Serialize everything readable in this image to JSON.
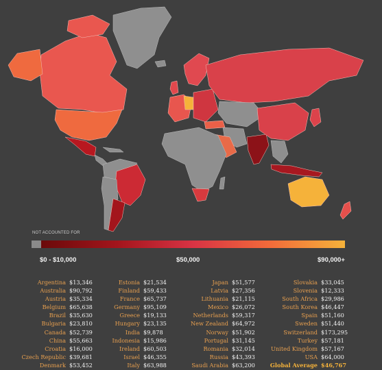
{
  "legend": {
    "not_accounted_label": "NOT ACCOUNTED FOR",
    "ticks": [
      "$0 - $10,000",
      "$50,000",
      "$90,000+"
    ],
    "colors": {
      "no_data": "#8a8a8a",
      "low": "#6b0a0a",
      "mid": "#d83344",
      "high": "#f5b23a"
    }
  },
  "table": {
    "col1": [
      {
        "country": "Argentina",
        "value": "$13,346"
      },
      {
        "country": "Australia",
        "value": "$90,792"
      },
      {
        "country": "Austria",
        "value": "$35,334"
      },
      {
        "country": "Belgium",
        "value": "$65,638"
      },
      {
        "country": "Brazil",
        "value": "$35,630"
      },
      {
        "country": "Bulgaria",
        "value": "$23,810"
      },
      {
        "country": "Canada",
        "value": "$52,739"
      },
      {
        "country": "China",
        "value": "$55,663"
      },
      {
        "country": "Croatia",
        "value": "$16,000"
      },
      {
        "country": "Czech Republic",
        "value": "$39,681"
      },
      {
        "country": "Denmark",
        "value": "$53,452"
      }
    ],
    "col2": [
      {
        "country": "Estonia",
        "value": "$21,534"
      },
      {
        "country": "Finland",
        "value": "$59,433"
      },
      {
        "country": "France",
        "value": "$65,737"
      },
      {
        "country": "Germany",
        "value": "$95,109"
      },
      {
        "country": "Greece",
        "value": "$19,133"
      },
      {
        "country": "Hungary",
        "value": "$23,135"
      },
      {
        "country": "India",
        "value": "$9,878"
      },
      {
        "country": "Indonesia",
        "value": "$15,986"
      },
      {
        "country": "Ireland",
        "value": "$60,503"
      },
      {
        "country": "Israel",
        "value": "$46,355"
      },
      {
        "country": "Italy",
        "value": "$63,988"
      }
    ],
    "col3": [
      {
        "country": "Japan",
        "value": "$51,577"
      },
      {
        "country": "Latvia",
        "value": "$27,356"
      },
      {
        "country": "Lithuania",
        "value": "$21,115"
      },
      {
        "country": "Mexico",
        "value": "$26,072"
      },
      {
        "country": "Netherlands",
        "value": "$59,317"
      },
      {
        "country": "New Zealand",
        "value": "$64,972"
      },
      {
        "country": "Norway",
        "value": "$51,902"
      },
      {
        "country": "Portugal",
        "value": "$31,145"
      },
      {
        "country": "Romania",
        "value": "$32,014"
      },
      {
        "country": "Russia",
        "value": "$43,393"
      },
      {
        "country": "Saudi Arabia",
        "value": "$63,200"
      }
    ],
    "col4": [
      {
        "country": "Slovakia",
        "value": "$33,045"
      },
      {
        "country": "Slovenia",
        "value": "$12,333"
      },
      {
        "country": "South Africa",
        "value": "$29,986"
      },
      {
        "country": "South Korea",
        "value": "$46,447"
      },
      {
        "country": "Spain",
        "value": "$51,160"
      },
      {
        "country": "Sweden",
        "value": "$51,440"
      },
      {
        "country": "Switzerland",
        "value": "$173,295"
      },
      {
        "country": "Turkey",
        "value": "$57,181"
      },
      {
        "country": "United Kingdom",
        "value": "$57,167"
      },
      {
        "country": "USA",
        "value": "$64,000"
      },
      {
        "country": "Global Average",
        "value": "$46,767"
      }
    ]
  }
}
